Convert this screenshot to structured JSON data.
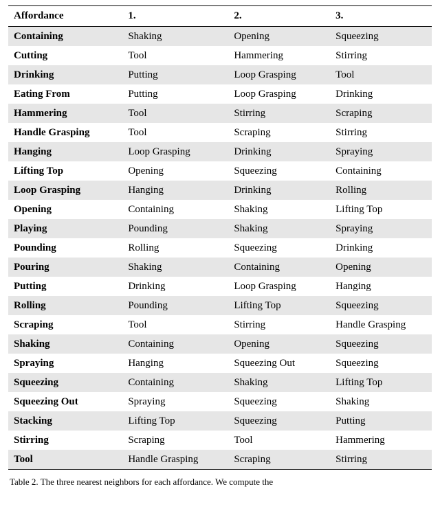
{
  "table": {
    "columns": [
      "Affordance",
      "1.",
      "2.",
      "3."
    ],
    "col_widths_pct": [
      27,
      25,
      24,
      24
    ],
    "header_bg": "#ffffff",
    "row_alt_bg": "#e6e6e6",
    "row_bg": "#ffffff",
    "border_color": "#000000",
    "font_family": "Times New Roman",
    "font_size_pt": 11,
    "rows": [
      [
        "Containing",
        "Shaking",
        "Opening",
        "Squeezing"
      ],
      [
        "Cutting",
        "Tool",
        "Hammering",
        "Stirring"
      ],
      [
        "Drinking",
        "Putting",
        "Loop Grasping",
        "Tool"
      ],
      [
        "Eating From",
        "Putting",
        "Loop Grasping",
        "Drinking"
      ],
      [
        "Hammering",
        "Tool",
        "Stirring",
        "Scraping"
      ],
      [
        "Handle Grasping",
        "Tool",
        "Scraping",
        "Stirring"
      ],
      [
        "Hanging",
        "Loop Grasping",
        "Drinking",
        "Spraying"
      ],
      [
        "Lifting Top",
        "Opening",
        "Squeezing",
        "Containing"
      ],
      [
        "Loop Grasping",
        "Hanging",
        "Drinking",
        "Rolling"
      ],
      [
        "Opening",
        "Containing",
        "Shaking",
        "Lifting Top"
      ],
      [
        "Playing",
        "Pounding",
        "Shaking",
        "Spraying"
      ],
      [
        "Pounding",
        "Rolling",
        "Squeezing",
        "Drinking"
      ],
      [
        "Pouring",
        "Shaking",
        "Containing",
        "Opening"
      ],
      [
        "Putting",
        "Drinking",
        "Loop Grasping",
        "Hanging"
      ],
      [
        "Rolling",
        "Pounding",
        "Lifting Top",
        "Squeezing"
      ],
      [
        "Scraping",
        "Tool",
        "Stirring",
        "Handle Grasping"
      ],
      [
        "Shaking",
        "Containing",
        "Opening",
        "Squeezing"
      ],
      [
        "Spraying",
        "Hanging",
        "Squeezing Out",
        "Squeezing"
      ],
      [
        "Squeezing",
        "Containing",
        "Shaking",
        "Lifting Top"
      ],
      [
        "Squeezing Out",
        "Spraying",
        "Squeezing",
        "Shaking"
      ],
      [
        "Stacking",
        "Lifting Top",
        "Squeezing",
        "Putting"
      ],
      [
        "Stirring",
        "Scraping",
        "Tool",
        "Hammering"
      ],
      [
        "Tool",
        "Handle Grasping",
        "Scraping",
        "Stirring"
      ]
    ]
  },
  "caption": {
    "label": "Table 2.",
    "text": "The three nearest neighbors for each affordance. We compute the"
  }
}
